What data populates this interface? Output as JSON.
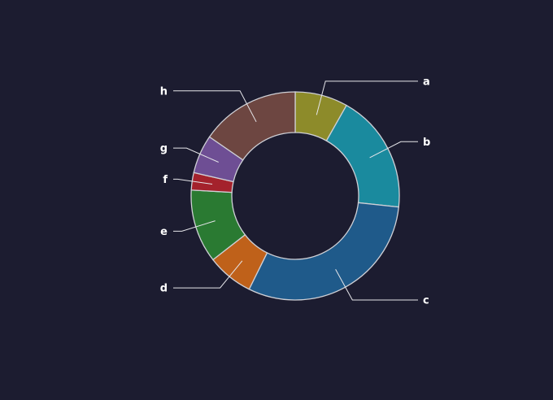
{
  "chart_data": {
    "type": "pie",
    "donut": true,
    "categories": [
      "a",
      "b",
      "c",
      "d",
      "e",
      "f",
      "g",
      "h"
    ],
    "values": [
      8.2,
      18.5,
      30.6,
      7.2,
      11.4,
      2.7,
      6.0,
      15.4
    ],
    "colors": [
      "#8d8b2a",
      "#1a8a9e",
      "#1f5a8a",
      "#bf611a",
      "#2a7a32",
      "#a4222c",
      "#6e4e94",
      "#6d4641"
    ],
    "legend": "none",
    "title": ""
  },
  "style": {
    "background": "#1c1c30",
    "slice_border": "#cfd0d6",
    "leader_line": "#e6e6ea",
    "label_color": "#ffffff"
  }
}
